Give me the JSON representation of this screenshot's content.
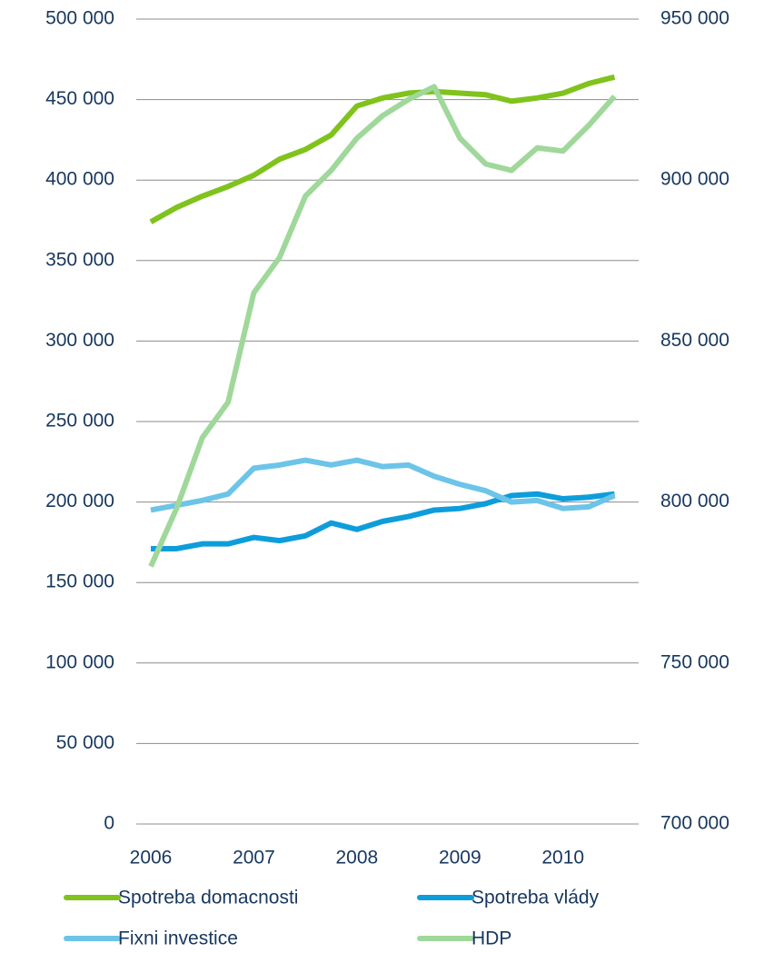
{
  "chart_data": {
    "type": "line",
    "categories": [
      "2006",
      null,
      null,
      null,
      "2007",
      null,
      null,
      null,
      "2008",
      null,
      null,
      null,
      "2009",
      null,
      null,
      null,
      "2010",
      null,
      null
    ],
    "series": [
      {
        "name": "Spotreba domacnosti",
        "color": "#7fc31c",
        "values": [
          374000,
          383000,
          390000,
          396000,
          403000,
          413000,
          419000,
          428000,
          446000,
          451000,
          454000,
          455000,
          454000,
          453000,
          449000,
          451000,
          454000,
          460000,
          464000
        ]
      },
      {
        "name": "Spotreba vlády",
        "color": "#0d9ddb",
        "values": [
          171000,
          171000,
          174000,
          174000,
          178000,
          176000,
          179000,
          187000,
          183000,
          188000,
          191000,
          195000,
          196000,
          199000,
          204000,
          205000,
          202000,
          203000,
          205000
        ]
      },
      {
        "name": "Fixni investice",
        "color": "#6cc4e8",
        "values": [
          195000,
          198000,
          201000,
          205000,
          221000,
          223000,
          226000,
          223000,
          226000,
          222000,
          223000,
          216000,
          211000,
          207000,
          200000,
          201000,
          196000,
          197000,
          204000
        ]
      },
      {
        "name": "HDP",
        "color": "#9fd89a",
        "axis": "y2",
        "values": [
          780000,
          798000,
          820000,
          831000,
          865000,
          876000,
          895000,
          903000,
          913000,
          920000,
          925000,
          929000,
          913000,
          905000,
          903000,
          910000,
          909000,
          917000,
          926000
        ]
      }
    ],
    "ylim": [
      0,
      500000
    ],
    "yticks": [
      0,
      {
        "value": 50000,
        "label": "50 000"
      },
      {
        "value": 100000,
        "label": "100 000"
      },
      {
        "value": 150000,
        "label": "150 000"
      },
      {
        "value": 200000,
        "label": "200 000"
      },
      {
        "value": 250000,
        "label": "250 000"
      },
      {
        "value": 300000,
        "label": "300 000"
      },
      {
        "value": 350000,
        "label": "350 000"
      },
      {
        "value": 400000,
        "label": "400 000"
      },
      {
        "value": 450000,
        "label": "450 000"
      },
      {
        "value": 500000,
        "label": "500 000"
      }
    ],
    "y2lim": [
      700000,
      950000
    ],
    "y2ticks": [
      {
        "value": 700000,
        "label": "700 000"
      },
      {
        "value": 750000,
        "label": "750 000"
      },
      {
        "value": 800000,
        "label": "800 000"
      },
      {
        "value": 850000,
        "label": "850 000"
      },
      {
        "value": 900000,
        "label": "900 000"
      },
      {
        "value": 950000,
        "label": "950 000"
      }
    ],
    "grid": true,
    "legend": "bottom"
  }
}
